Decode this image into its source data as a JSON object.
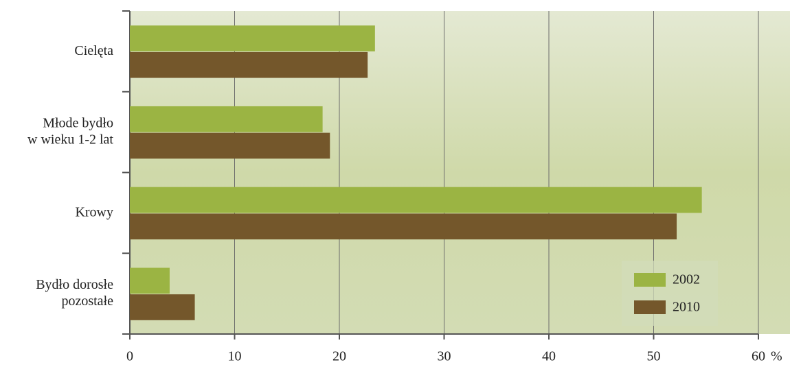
{
  "chart_data": {
    "type": "barh",
    "categories": [
      "Cielęta",
      "Młode bydło\nw wieku 1-2 lat",
      "Krowy",
      "Bydło dorosłe\npozostałe"
    ],
    "series": [
      {
        "name": "2002",
        "color": "#9bb443",
        "values": [
          23.4,
          18.4,
          54.6,
          3.8
        ]
      },
      {
        "name": "2010",
        "color": "#74572b",
        "values": [
          22.7,
          19.1,
          52.2,
          6.2
        ]
      }
    ],
    "xlim": [
      0,
      60
    ],
    "xticks": [
      0,
      10,
      20,
      30,
      40,
      50,
      60
    ],
    "x_unit": "%",
    "grid": true,
    "legend": "lower right"
  }
}
